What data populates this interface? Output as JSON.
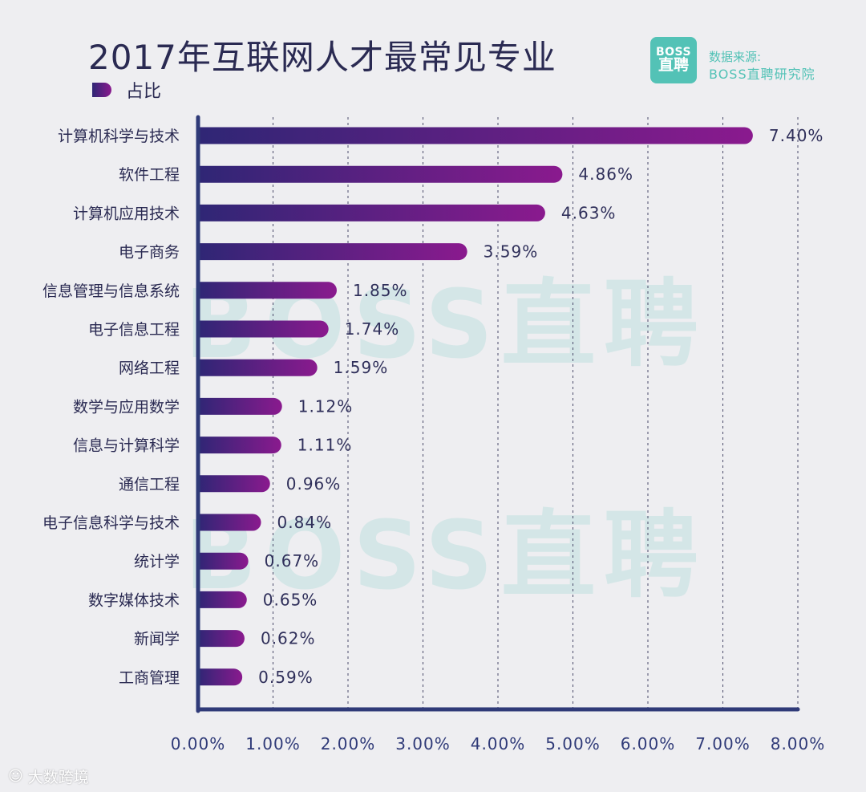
{
  "header": {
    "title": "2017年互联网人才最常见专业",
    "legend_label": "占比",
    "logo_line1": "BOSS",
    "logo_line2": "直聘",
    "source_line1": "数据来源:",
    "source_line2": "BOSS直聘研究院"
  },
  "watermark": {
    "text": "BOSS直聘"
  },
  "footer": {
    "label": "大数跨境",
    "icon": "weibo-like-icon"
  },
  "colors": {
    "bar_start": "#2f2675",
    "bar_end": "#8a1a8e",
    "axis": "#2f3a78",
    "accent": "#53c2b6"
  },
  "chart_data": {
    "type": "bar",
    "orientation": "horizontal",
    "title": "2017年互联网人才最常见专业",
    "legend": [
      "占比"
    ],
    "categories": [
      "计算机科学与技术",
      "软件工程",
      "计算机应用技术",
      "电子商务",
      "信息管理与信息系统",
      "电子信息工程",
      "网络工程",
      "数学与应用数学",
      "信息与计算科学",
      "通信工程",
      "电子信息科学与技术",
      "统计学",
      "数字媒体技术",
      "新闻学",
      "工商管理"
    ],
    "series": [
      {
        "name": "占比",
        "values": [
          7.4,
          4.86,
          4.63,
          3.59,
          1.85,
          1.74,
          1.59,
          1.12,
          1.11,
          0.96,
          0.84,
          0.67,
          0.65,
          0.62,
          0.59
        ]
      }
    ],
    "value_labels": [
      "7.40%",
      "4.86%",
      "4.63%",
      "3.59%",
      "1.85%",
      "1.74%",
      "1.59%",
      "1.12%",
      "1.11%",
      "0.96%",
      "0.84%",
      "0.67%",
      "0.65%",
      "0.62%",
      "0.59%"
    ],
    "xlim": [
      0,
      8
    ],
    "xticks": [
      0,
      1,
      2,
      3,
      4,
      5,
      6,
      7,
      8
    ],
    "xtick_labels": [
      "0.00%",
      "1.00%",
      "2.00%",
      "3.00%",
      "4.00%",
      "5.00%",
      "6.00%",
      "7.00%",
      "8.00%"
    ],
    "grid": "vertical-dashed",
    "xlabel": "",
    "ylabel": ""
  }
}
